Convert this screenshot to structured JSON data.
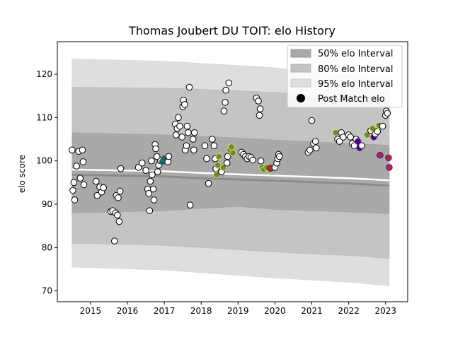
{
  "chart_data": {
    "type": "scatter",
    "title": "Thomas Joubert DU TOIT: elo History",
    "ylabel": "elo score",
    "xlabel": "",
    "xlim": [
      2014.1,
      2023.6
    ],
    "ylim": [
      67.5,
      127.5
    ],
    "x_ticks": [
      2015,
      2016,
      2017,
      2018,
      2019,
      2020,
      2021,
      2022,
      2023
    ],
    "y_ticks": [
      70,
      80,
      90,
      100,
      110,
      120
    ],
    "legend_position": "top-right",
    "legend": [
      {
        "label": "50% elo Interval",
        "color": "#a9a9a9"
      },
      {
        "label": "80% elo Interval",
        "color": "#c4c4c4"
      },
      {
        "label": "95% elo Interval",
        "color": "#dedede"
      },
      {
        "label": "Post Match elo",
        "color": "#000000"
      }
    ],
    "bands": {
      "x": [
        2014.5,
        2017.0,
        2018.0,
        2019.0,
        2020.0,
        2021.0,
        2022.0,
        2023.1
      ],
      "p95_upper": [
        123.5,
        123.0,
        122.5,
        122.0,
        121.5,
        120.5,
        120.0,
        119.0
      ],
      "p95_lower": [
        75.5,
        74.8,
        74.2,
        73.6,
        73.0,
        72.5,
        72.0,
        71.2
      ],
      "p80_upper": [
        117.0,
        116.8,
        116.5,
        116.2,
        115.8,
        115.3,
        115.0,
        114.6
      ],
      "p80_lower": [
        81.0,
        80.5,
        80.0,
        79.5,
        79.0,
        78.5,
        78.2,
        77.5
      ],
      "p50_upper": [
        106.5,
        106.0,
        105.7,
        105.3,
        104.8,
        104.4,
        104.0,
        103.6
      ],
      "p50_lower": [
        88.0,
        88.5,
        89.0,
        89.5,
        88.8,
        88.5,
        88.2,
        87.8
      ],
      "mean": [
        98.0,
        97.6,
        97.2,
        96.9,
        96.6,
        96.3,
        96.0,
        95.5
      ]
    },
    "points": [
      {
        "x": 2014.5,
        "y": 102.5
      },
      {
        "x": 2014.55,
        "y": 95.0
      },
      {
        "x": 2014.52,
        "y": 93.2
      },
      {
        "x": 2014.57,
        "y": 91.0
      },
      {
        "x": 2014.62,
        "y": 98.8
      },
      {
        "x": 2014.68,
        "y": 102.2
      },
      {
        "x": 2014.78,
        "y": 102.5
      },
      {
        "x": 2014.8,
        "y": 99.8
      },
      {
        "x": 2014.72,
        "y": 96.0
      },
      {
        "x": 2014.82,
        "y": 94.5
      },
      {
        "x": 2015.15,
        "y": 95.3
      },
      {
        "x": 2015.18,
        "y": 92.0
      },
      {
        "x": 2015.25,
        "y": 94.0
      },
      {
        "x": 2015.3,
        "y": 92.8
      },
      {
        "x": 2015.35,
        "y": 93.8
      },
      {
        "x": 2015.55,
        "y": 88.3
      },
      {
        "x": 2015.6,
        "y": 88.5
      },
      {
        "x": 2015.65,
        "y": 81.5
      },
      {
        "x": 2015.68,
        "y": 88.0
      },
      {
        "x": 2015.7,
        "y": 92.0
      },
      {
        "x": 2015.73,
        "y": 87.5
      },
      {
        "x": 2015.75,
        "y": 91.5
      },
      {
        "x": 2015.78,
        "y": 86.0
      },
      {
        "x": 2015.8,
        "y": 93.0
      },
      {
        "x": 2015.82,
        "y": 98.2
      },
      {
        "x": 2016.3,
        "y": 98.5
      },
      {
        "x": 2016.4,
        "y": 99.5
      },
      {
        "x": 2016.5,
        "y": 97.8
      },
      {
        "x": 2016.55,
        "y": 93.5
      },
      {
        "x": 2016.58,
        "y": 92.5
      },
      {
        "x": 2016.6,
        "y": 88.5
      },
      {
        "x": 2016.62,
        "y": 95.3
      },
      {
        "x": 2016.65,
        "y": 100.0
      },
      {
        "x": 2016.67,
        "y": 96.8
      },
      {
        "x": 2016.7,
        "y": 93.5
      },
      {
        "x": 2016.72,
        "y": 91.0
      },
      {
        "x": 2016.75,
        "y": 103.8
      },
      {
        "x": 2016.77,
        "y": 102.8
      },
      {
        "x": 2016.8,
        "y": 101.0
      },
      {
        "x": 2016.82,
        "y": 97.5
      },
      {
        "x": 2016.85,
        "y": 99.0
      },
      {
        "x": 2016.9,
        "y": 100.0
      },
      {
        "x": 2016.95,
        "y": 99.8,
        "edge": "#2a7f7f",
        "fill": "#1f5f5f"
      },
      {
        "x": 2017.0,
        "y": 100.5,
        "edge": "#2a7f7f",
        "fill": "#1f5f5f"
      },
      {
        "x": 2017.1,
        "y": 99.8
      },
      {
        "x": 2017.12,
        "y": 101.0
      },
      {
        "x": 2017.3,
        "y": 108.5
      },
      {
        "x": 2017.32,
        "y": 106.0
      },
      {
        "x": 2017.35,
        "y": 107.5
      },
      {
        "x": 2017.38,
        "y": 110.0
      },
      {
        "x": 2017.42,
        "y": 108.0
      },
      {
        "x": 2017.48,
        "y": 105.5
      },
      {
        "x": 2017.5,
        "y": 112.5
      },
      {
        "x": 2017.52,
        "y": 114.0
      },
      {
        "x": 2017.55,
        "y": 113.0
      },
      {
        "x": 2017.57,
        "y": 102.5
      },
      {
        "x": 2017.6,
        "y": 103.5
      },
      {
        "x": 2017.62,
        "y": 108.0
      },
      {
        "x": 2017.65,
        "y": 106.5
      },
      {
        "x": 2017.68,
        "y": 117.0
      },
      {
        "x": 2017.7,
        "y": 89.8
      },
      {
        "x": 2017.78,
        "y": 105.0
      },
      {
        "x": 2017.8,
        "y": 102.5
      },
      {
        "x": 2017.82,
        "y": 106.5
      },
      {
        "x": 2018.1,
        "y": 103.5
      },
      {
        "x": 2018.15,
        "y": 100.5
      },
      {
        "x": 2018.2,
        "y": 94.8
      },
      {
        "x": 2018.3,
        "y": 105.0
      },
      {
        "x": 2018.35,
        "y": 103.5
      },
      {
        "x": 2018.38,
        "y": 100.5
      },
      {
        "x": 2018.4,
        "y": 98.2
      },
      {
        "x": 2018.42,
        "y": 96.8,
        "edge": "#d4d47a",
        "fill": "#6b8e23"
      },
      {
        "x": 2018.45,
        "y": 99.0,
        "edge": "#d4d47a",
        "fill": "#6b8e23"
      },
      {
        "x": 2018.48,
        "y": 101.0,
        "edge": "#d4d47a",
        "fill": "#6b8e23"
      },
      {
        "x": 2018.55,
        "y": 97.5
      },
      {
        "x": 2018.6,
        "y": 98.5,
        "edge": "#d4d47a",
        "fill": "#6b8e23"
      },
      {
        "x": 2018.62,
        "y": 111.5
      },
      {
        "x": 2018.65,
        "y": 113.5
      },
      {
        "x": 2018.67,
        "y": 116.3
      },
      {
        "x": 2018.7,
        "y": 99.5
      },
      {
        "x": 2018.72,
        "y": 101.0
      },
      {
        "x": 2018.75,
        "y": 118.0
      },
      {
        "x": 2018.78,
        "y": 102.5,
        "edge": "#d4d47a",
        "fill": "#6b8e23"
      },
      {
        "x": 2018.82,
        "y": 103.2,
        "edge": "#d4d47a",
        "fill": "#6b8e23"
      },
      {
        "x": 2018.86,
        "y": 101.8,
        "edge": "#d4d47a",
        "fill": "#6b8e23"
      },
      {
        "x": 2019.1,
        "y": 102.0
      },
      {
        "x": 2019.15,
        "y": 101.5
      },
      {
        "x": 2019.2,
        "y": 101.0
      },
      {
        "x": 2019.25,
        "y": 100.5
      },
      {
        "x": 2019.3,
        "y": 101.0
      },
      {
        "x": 2019.35,
        "y": 100.8
      },
      {
        "x": 2019.4,
        "y": 100.2
      },
      {
        "x": 2019.5,
        "y": 114.5
      },
      {
        "x": 2019.55,
        "y": 113.8
      },
      {
        "x": 2019.58,
        "y": 110.5
      },
      {
        "x": 2019.6,
        "y": 112.0
      },
      {
        "x": 2019.62,
        "y": 100.0
      },
      {
        "x": 2019.65,
        "y": 98.5,
        "edge": "#d4d47a",
        "fill": "#6b8e23"
      },
      {
        "x": 2019.7,
        "y": 98.0,
        "edge": "#d4d47a",
        "fill": "#6b8e23"
      },
      {
        "x": 2019.78,
        "y": 98.5,
        "edge": "#d4d47a",
        "fill": "#6b8e23"
      },
      {
        "x": 2019.88,
        "y": 98.3,
        "edge": "#222222",
        "fill": "#cc2222"
      },
      {
        "x": 2020.0,
        "y": 98.5
      },
      {
        "x": 2020.05,
        "y": 99.5
      },
      {
        "x": 2020.08,
        "y": 100.5
      },
      {
        "x": 2020.1,
        "y": 101.5
      },
      {
        "x": 2020.12,
        "y": 101.0
      },
      {
        "x": 2020.9,
        "y": 102.0
      },
      {
        "x": 2020.95,
        "y": 102.5
      },
      {
        "x": 2021.0,
        "y": 109.3
      },
      {
        "x": 2021.05,
        "y": 104.0
      },
      {
        "x": 2021.1,
        "y": 104.5
      },
      {
        "x": 2021.12,
        "y": 103.0
      },
      {
        "x": 2021.65,
        "y": 106.5,
        "edge": "#d4d47a",
        "fill": "#6b8e23"
      },
      {
        "x": 2021.7,
        "y": 105.0
      },
      {
        "x": 2021.75,
        "y": 104.5
      },
      {
        "x": 2021.8,
        "y": 106.5
      },
      {
        "x": 2021.85,
        "y": 105.5
      },
      {
        "x": 2022.0,
        "y": 106.0
      },
      {
        "x": 2022.05,
        "y": 105.5
      },
      {
        "x": 2022.1,
        "y": 104.0
      },
      {
        "x": 2022.15,
        "y": 103.5
      },
      {
        "x": 2022.2,
        "y": 105.0
      },
      {
        "x": 2022.25,
        "y": 104.5,
        "edge": "#8a2be2",
        "fill": "#4b0082"
      },
      {
        "x": 2022.3,
        "y": 103.0,
        "edge": "#8a2be2",
        "fill": "#4b0082"
      },
      {
        "x": 2022.35,
        "y": 103.5
      },
      {
        "x": 2022.5,
        "y": 106.0,
        "edge": "#d4d47a",
        "fill": "#6b8e23"
      },
      {
        "x": 2022.6,
        "y": 107.0
      },
      {
        "x": 2022.65,
        "y": 107.5,
        "edge": "#d4d47a",
        "fill": "#6b8e23"
      },
      {
        "x": 2022.68,
        "y": 105.5,
        "edge": "#8a2be2",
        "fill": "#4b0082"
      },
      {
        "x": 2022.72,
        "y": 106.2
      },
      {
        "x": 2022.78,
        "y": 106.8
      },
      {
        "x": 2022.82,
        "y": 108.2,
        "edge": "#d4d47a",
        "fill": "#6b8e23"
      },
      {
        "x": 2022.85,
        "y": 101.3,
        "edge": "#1e1ee0",
        "fill": "#cc2222"
      },
      {
        "x": 2022.92,
        "y": 108.0
      },
      {
        "x": 2023.0,
        "y": 110.5
      },
      {
        "x": 2023.02,
        "y": 111.5
      },
      {
        "x": 2023.05,
        "y": 111.0
      },
      {
        "x": 2023.08,
        "y": 100.7,
        "edge": "#1e1ee0",
        "fill": "#cc2222"
      },
      {
        "x": 2023.1,
        "y": 98.5,
        "edge": "#1e1ee0",
        "fill": "#cc2222"
      }
    ]
  }
}
